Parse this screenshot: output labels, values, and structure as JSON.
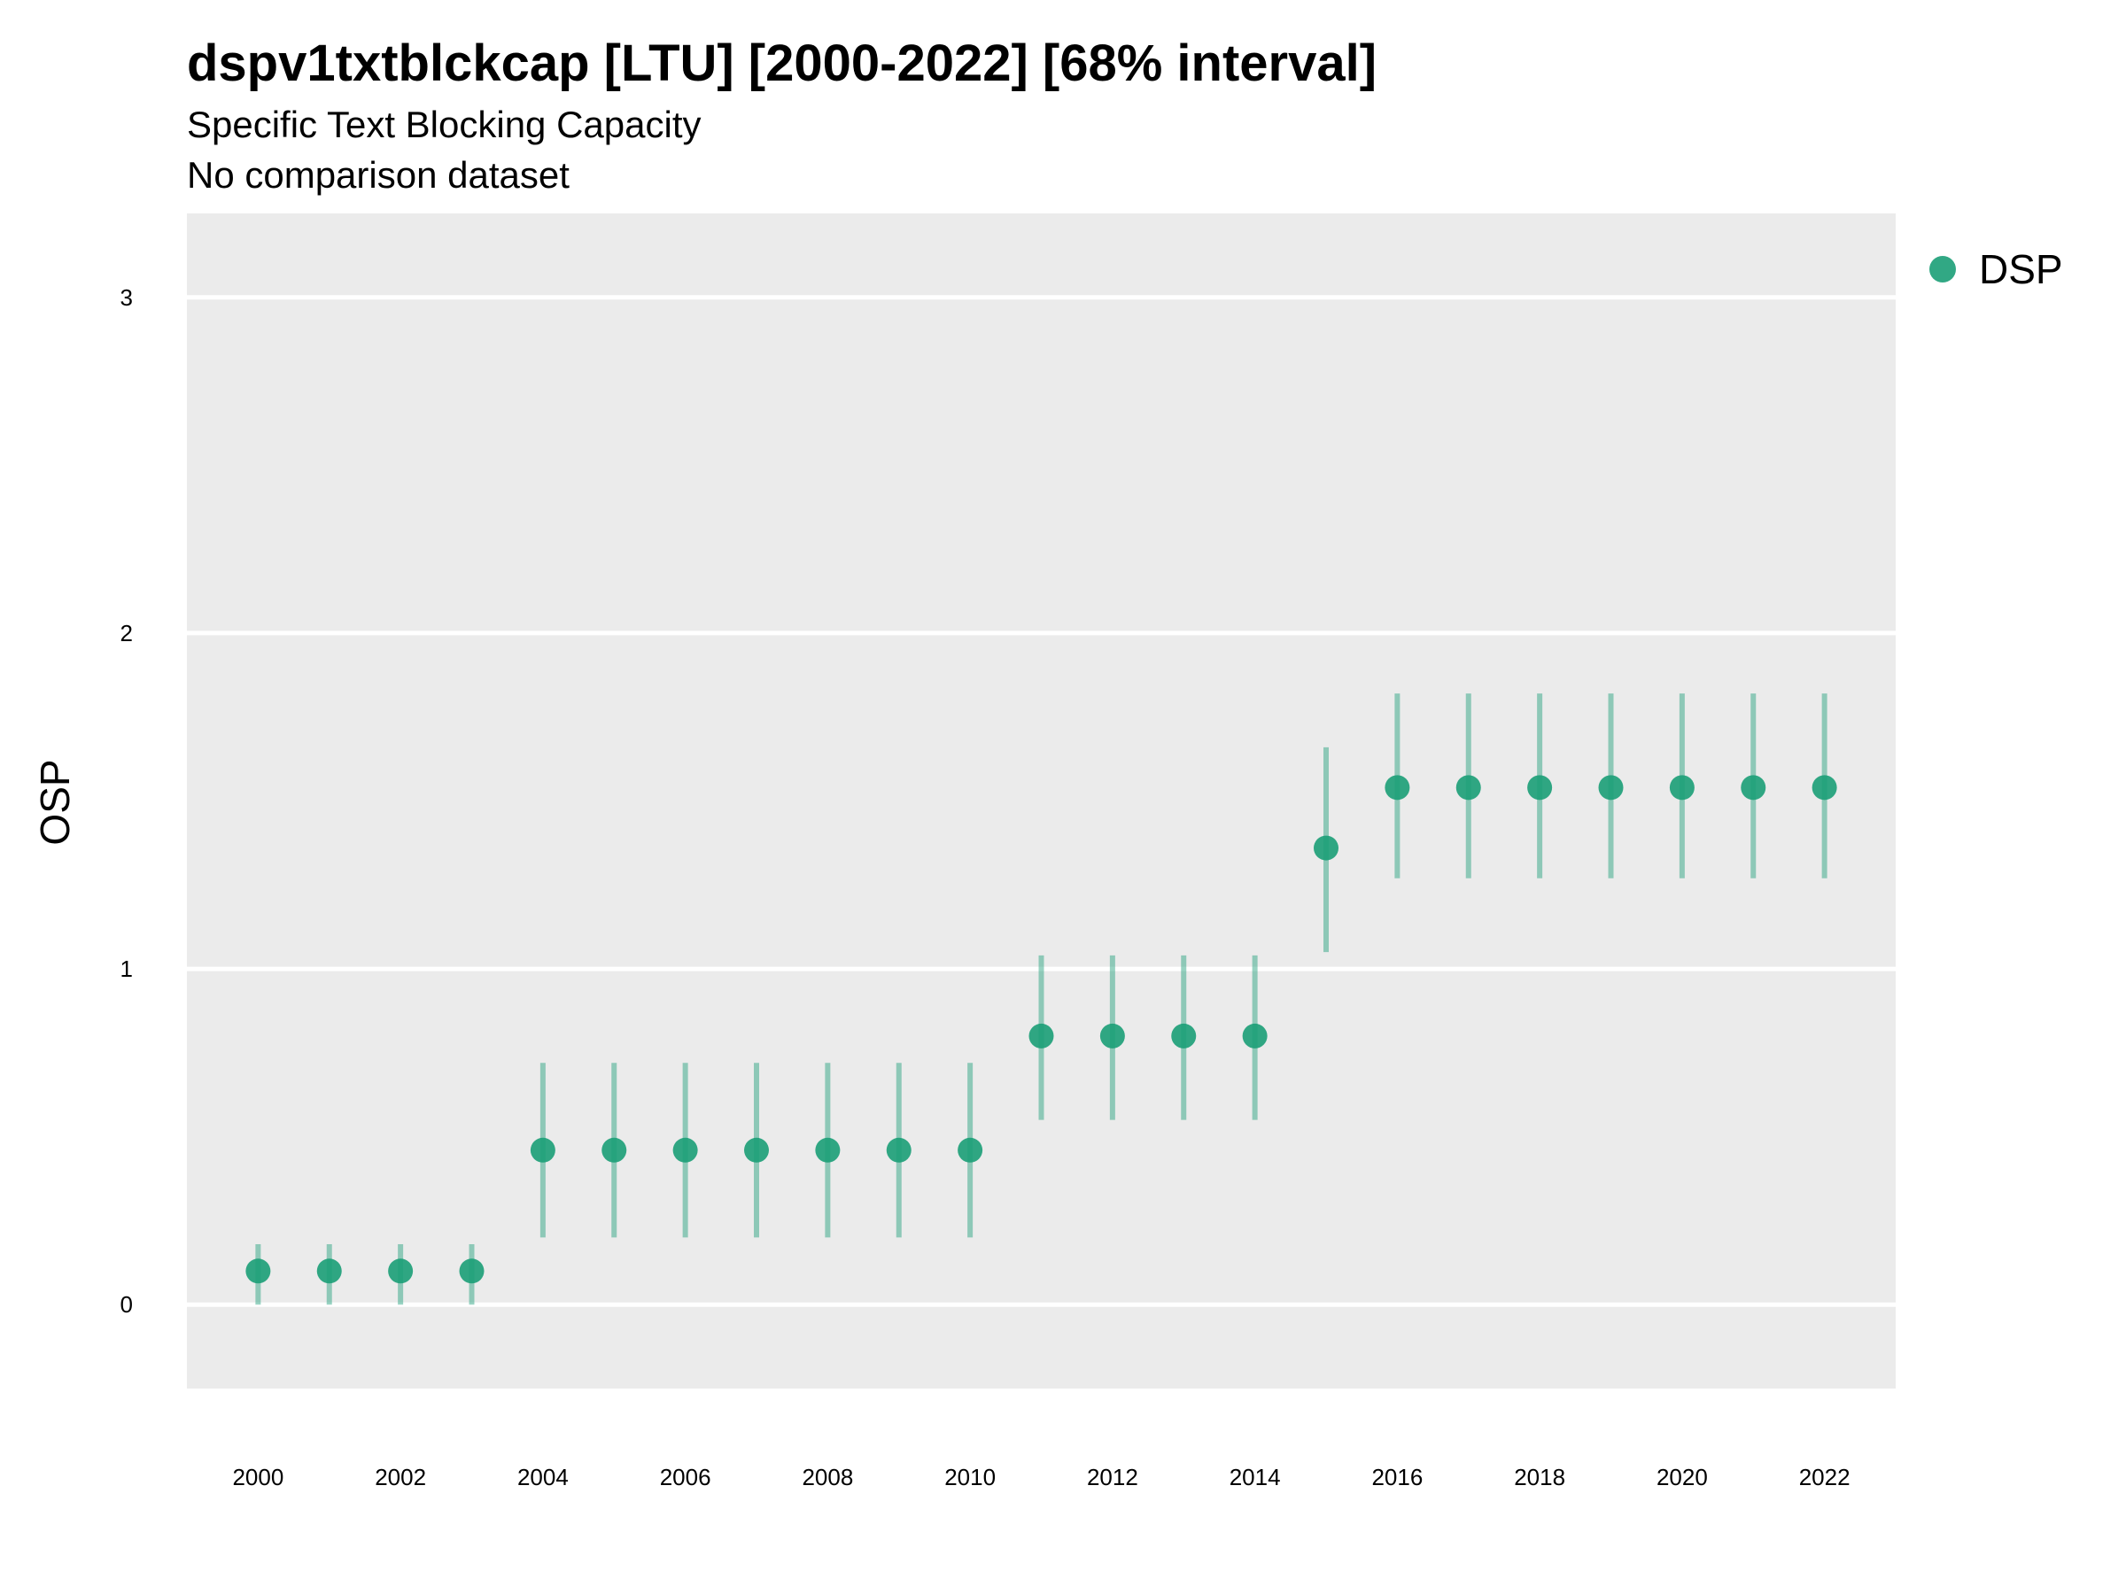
{
  "chart_data": {
    "type": "scatter",
    "title": "dspv1txtblckcap [LTU] [2000-2022] [68% interval]",
    "subtitle": "Specific Text Blocking Capacity",
    "subtitle2": "No comparison dataset",
    "xlabel": "",
    "ylabel": "OSP",
    "ylim": [
      -0.25,
      3.25
    ],
    "xlim": [
      1999,
      2023
    ],
    "y_ticks": [
      0,
      1,
      2,
      3
    ],
    "x_ticks": [
      2000,
      2002,
      2004,
      2006,
      2008,
      2010,
      2012,
      2014,
      2016,
      2018,
      2020,
      2022
    ],
    "grid": true,
    "legend_position": "right",
    "colors": {
      "point": "#1b9e77",
      "panel": "#ebebeb",
      "grid": "#ffffff"
    },
    "series": [
      {
        "name": "DSP",
        "x": [
          2000,
          2001,
          2002,
          2003,
          2004,
          2005,
          2006,
          2007,
          2008,
          2009,
          2010,
          2011,
          2012,
          2013,
          2014,
          2015,
          2016,
          2017,
          2018,
          2019,
          2020,
          2021,
          2022
        ],
        "y": [
          0.1,
          0.1,
          0.1,
          0.1,
          0.46,
          0.46,
          0.46,
          0.46,
          0.46,
          0.46,
          0.46,
          0.8,
          0.8,
          0.8,
          0.8,
          1.36,
          1.54,
          1.54,
          1.54,
          1.54,
          1.54,
          1.54,
          1.54
        ],
        "lower": [
          0.0,
          0.0,
          0.0,
          0.0,
          0.2,
          0.2,
          0.2,
          0.2,
          0.2,
          0.2,
          0.2,
          0.55,
          0.55,
          0.55,
          0.55,
          1.05,
          1.27,
          1.27,
          1.27,
          1.27,
          1.27,
          1.27,
          1.27
        ],
        "upper": [
          0.18,
          0.18,
          0.18,
          0.18,
          0.72,
          0.72,
          0.72,
          0.72,
          0.72,
          0.72,
          0.72,
          1.04,
          1.04,
          1.04,
          1.04,
          1.66,
          1.82,
          1.82,
          1.82,
          1.82,
          1.82,
          1.82,
          1.82
        ]
      }
    ]
  }
}
